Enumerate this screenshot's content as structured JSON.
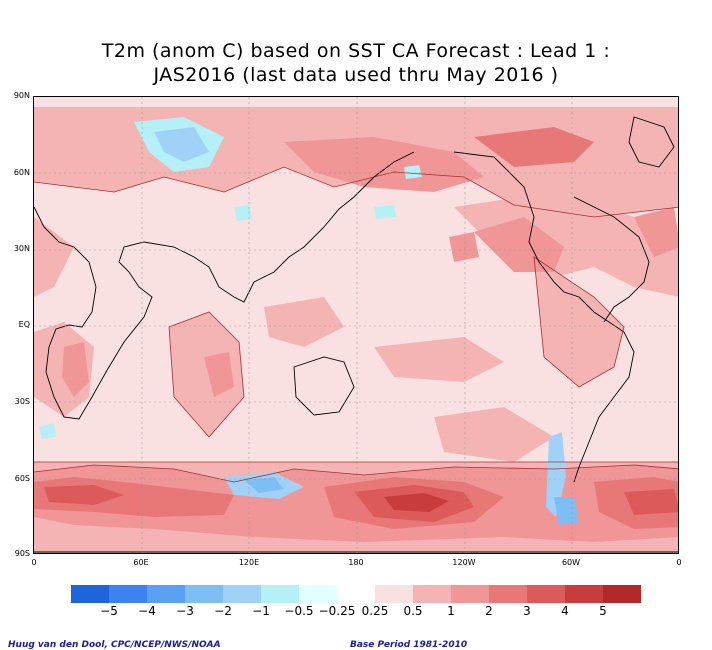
{
  "title": {
    "line1": "T2m (anom C) based on SST CA Forecast : Lead 1 :",
    "line2": "JAS2016 (last data used thru May 2016 )"
  },
  "y_axis_labels": [
    "90N",
    "60N",
    "30N",
    "EQ",
    "30S",
    "60S",
    "90S"
  ],
  "x_axis_labels": [
    "0",
    "60E",
    "120E",
    "180",
    "120W",
    "60W",
    "0"
  ],
  "legend": {
    "colors": [
      "#1e64dc",
      "#3c82f0",
      "#5aa0f5",
      "#7dbef5",
      "#a0d2f8",
      "#b4f0f5",
      "#e1ffff",
      "#ffffff",
      "#fae1e1",
      "#f5b4b4",
      "#f09696",
      "#e87878",
      "#dc5a5a",
      "#c83c3c",
      "#b42828"
    ],
    "labels": [
      "−5",
      "−4",
      "−3",
      "−2",
      "−1",
      "−0.5",
      "−0.25",
      "0.25",
      "0.5",
      "1",
      "2",
      "3",
      "4",
      "5"
    ]
  },
  "footer": {
    "left": "Huug van den Dool, CPC/NCEP/NWS/NOAA",
    "right": "Base Period 1981-2010"
  }
}
